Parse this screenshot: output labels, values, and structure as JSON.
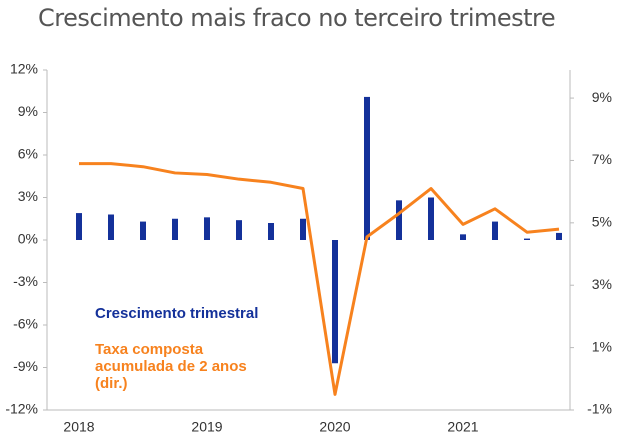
{
  "chart_data": {
    "type": "bar-line",
    "title": "Crescimento mais fraco no terceiro trimestre",
    "categories": [
      "2018",
      null,
      null,
      null,
      "2019",
      null,
      null,
      null,
      "2020",
      null,
      null,
      null,
      "2021",
      null,
      null,
      null
    ],
    "series": [
      {
        "name": "Crescimento trimestral",
        "color": "#14319a",
        "type": "bar",
        "values": [
          1.9,
          1.8,
          1.3,
          1.5,
          1.6,
          1.4,
          1.2,
          1.5,
          -8.7,
          10.1,
          2.8,
          3.0,
          0.4,
          1.3,
          0.1,
          0.5
        ]
      },
      {
        "name": "Taxa composta acumulada de 2 anos (dir.)",
        "color": "#f7821e",
        "type": "line",
        "axis": "y2",
        "values": [
          6.9,
          6.9,
          6.8,
          6.6,
          6.55,
          6.4,
          6.3,
          6.1,
          -0.5,
          4.55,
          5.3,
          6.1,
          4.95,
          5.45,
          4.7,
          4.8
        ]
      }
    ],
    "ylim": [
      -12,
      12
    ],
    "yticks": [
      {
        "value": -12,
        "label": "-12%"
      },
      {
        "value": -9,
        "label": "-9%"
      },
      {
        "value": -6,
        "label": "-6%"
      },
      {
        "value": -3,
        "label": "-3%"
      },
      {
        "value": 0,
        "label": "0%"
      },
      {
        "value": 3,
        "label": "3%"
      },
      {
        "value": 6,
        "label": "6%"
      },
      {
        "value": 9,
        "label": "9%"
      },
      {
        "value": 12,
        "label": "12%"
      }
    ],
    "y2lim": [
      -1,
      9.9
    ],
    "y2ticks": [
      {
        "value": -1,
        "label": "-1%"
      },
      {
        "value": 1,
        "label": "1%"
      },
      {
        "value": 3,
        "label": "3%"
      },
      {
        "value": 5,
        "label": "5%"
      },
      {
        "value": 7,
        "label": "7%"
      },
      {
        "value": 9,
        "label": "9%"
      }
    ]
  }
}
